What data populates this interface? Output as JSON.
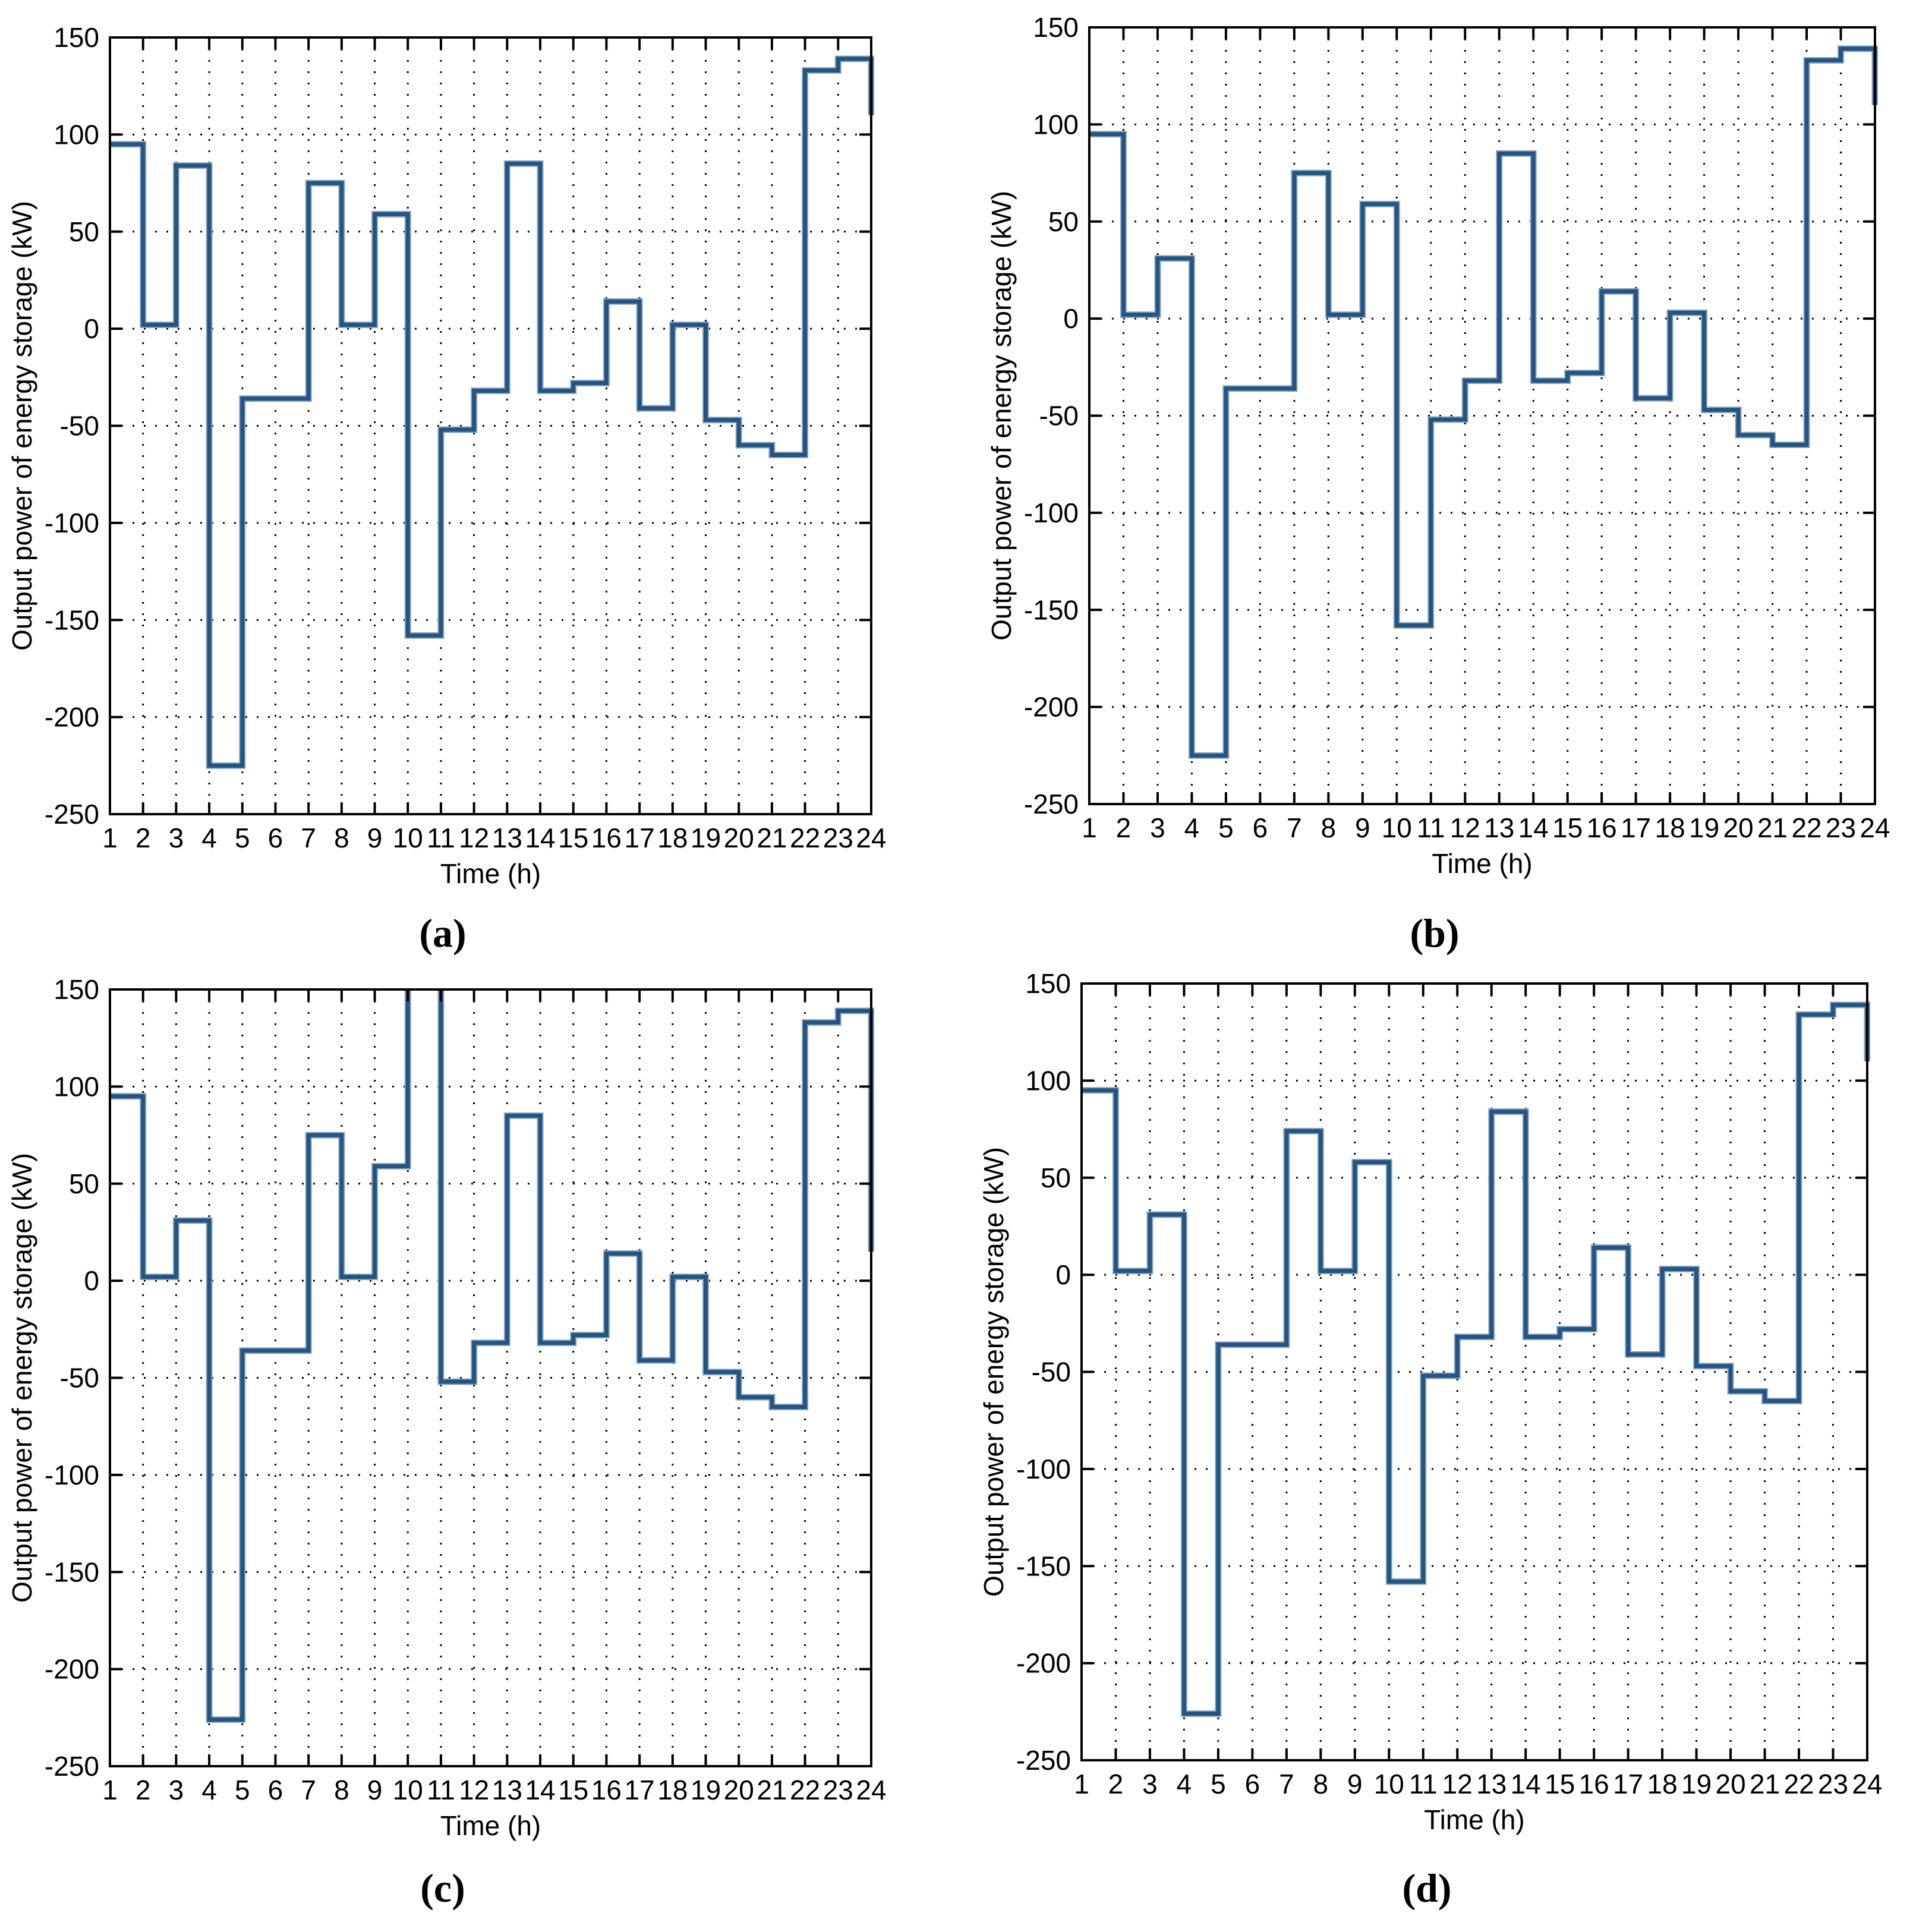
{
  "figure": {
    "background_color": "#ffffff",
    "axis_color": "#000000",
    "line_color": "#24547f",
    "line_halo_color": "#8aa6c5",
    "grid_style": "dotted"
  },
  "chart_data": [
    {
      "id": "a",
      "type": "line",
      "subtype": "stairs",
      "caption": "(a)",
      "xlabel": "Time (h)",
      "ylabel": "Output power of energy storage (kW)",
      "xlim": [
        1,
        24
      ],
      "ylim": [
        -250,
        150
      ],
      "x_ticks": [
        1,
        2,
        3,
        4,
        5,
        6,
        7,
        8,
        9,
        10,
        11,
        12,
        13,
        14,
        15,
        16,
        17,
        18,
        19,
        20,
        21,
        22,
        23,
        24
      ],
      "y_ticks": [
        150,
        100,
        50,
        0,
        -50,
        -100,
        -150,
        -200,
        -250
      ],
      "grid": "dotted",
      "legend": "none",
      "x": [
        1,
        2,
        3,
        4,
        5,
        6,
        7,
        8,
        9,
        10,
        11,
        12,
        13,
        14,
        15,
        16,
        17,
        18,
        19,
        20,
        21,
        22,
        23,
        24
      ],
      "values": [
        95,
        2,
        84,
        -225,
        -36,
        -36,
        75,
        2,
        59,
        -158,
        -52,
        -32,
        85,
        -32,
        -28,
        14,
        -41,
        2,
        -47,
        -60,
        -65,
        133,
        139,
        110
      ],
      "clipped_above_ymax": false,
      "layout": {
        "quadrant_left": 0,
        "quadrant_top": 0,
        "ax_left": 185,
        "ax_top": 63,
        "ax_width": 1281,
        "ax_height": 1307,
        "caption_center_x": 745,
        "caption_top": 1524
      }
    },
    {
      "id": "b",
      "type": "line",
      "subtype": "stairs",
      "caption": "(b)",
      "xlabel": "Time (h)",
      "ylabel": "Output power of energy storage (kW)",
      "xlim": [
        1,
        24
      ],
      "ylim": [
        -250,
        150
      ],
      "x_ticks": [
        1,
        2,
        3,
        4,
        5,
        6,
        7,
        8,
        9,
        10,
        11,
        12,
        13,
        14,
        15,
        16,
        17,
        18,
        19,
        20,
        21,
        22,
        23,
        24
      ],
      "y_ticks": [
        150,
        100,
        50,
        0,
        -50,
        -100,
        -150,
        -200,
        -250
      ],
      "grid": "dotted",
      "legend": "none",
      "x": [
        1,
        2,
        3,
        4,
        5,
        6,
        7,
        8,
        9,
        10,
        11,
        12,
        13,
        14,
        15,
        16,
        17,
        18,
        19,
        20,
        21,
        22,
        23,
        24
      ],
      "values": [
        95,
        2,
        31,
        -225,
        -36,
        -36,
        75,
        2,
        59,
        -158,
        -52,
        -32,
        85,
        -32,
        -28,
        14,
        -41,
        3,
        -47,
        -60,
        -65,
        133,
        139,
        110
      ],
      "clipped_above_ymax": false,
      "layout": {
        "quadrant_left": 1625,
        "quadrant_top": 0,
        "ax_left": 208,
        "ax_top": 46,
        "ax_width": 1322,
        "ax_height": 1307,
        "caption_center_x": 789,
        "caption_top": 1524
      }
    },
    {
      "id": "c",
      "type": "line",
      "subtype": "stairs",
      "caption": "(c)",
      "xlabel": "Time (h)",
      "ylabel": "Output power of energy storage (kW)",
      "xlim": [
        1,
        24
      ],
      "ylim": [
        -250,
        150
      ],
      "x_ticks": [
        1,
        2,
        3,
        4,
        5,
        6,
        7,
        8,
        9,
        10,
        11,
        12,
        13,
        14,
        15,
        16,
        17,
        18,
        19,
        20,
        21,
        22,
        23,
        24
      ],
      "y_ticks": [
        150,
        100,
        50,
        0,
        -50,
        -100,
        -150,
        -200,
        -250
      ],
      "grid": "dotted",
      "legend": "none",
      "x": [
        1,
        2,
        3,
        4,
        5,
        6,
        7,
        8,
        9,
        10,
        11,
        12,
        13,
        14,
        15,
        16,
        17,
        18,
        19,
        20,
        21,
        22,
        23,
        24
      ],
      "values": [
        95,
        2,
        31,
        -226,
        -36,
        -36,
        75,
        2,
        59,
        165,
        -52,
        -32,
        85,
        -32,
        -28,
        14,
        -41,
        2,
        -47,
        -60,
        -65,
        133,
        139,
        15
      ],
      "clipped_above_ymax": true,
      "note": "hour-10 step exceeds the 150 kW axis maximum; line is clipped at the top border",
      "layout": {
        "quadrant_left": 0,
        "quadrant_top": 1625,
        "ax_left": 185,
        "ax_top": 40,
        "ax_width": 1281,
        "ax_height": 1307,
        "caption_center_x": 745,
        "caption_top": 1506
      }
    },
    {
      "id": "d",
      "type": "line",
      "subtype": "stairs",
      "caption": "(d)",
      "xlabel": "Time (h)",
      "ylabel": "Output power of energy storage (kW)",
      "xlim": [
        1,
        24
      ],
      "ylim": [
        -250,
        150
      ],
      "x_ticks": [
        1,
        2,
        3,
        4,
        5,
        6,
        7,
        8,
        9,
        10,
        11,
        12,
        13,
        14,
        15,
        16,
        17,
        18,
        19,
        20,
        21,
        22,
        23,
        24
      ],
      "y_ticks": [
        150,
        100,
        50,
        0,
        -50,
        -100,
        -150,
        -200,
        -250
      ],
      "grid": "dotted",
      "legend": "none",
      "x": [
        1,
        2,
        3,
        4,
        5,
        6,
        7,
        8,
        9,
        10,
        11,
        12,
        13,
        14,
        15,
        16,
        17,
        18,
        19,
        20,
        21,
        22,
        23,
        24
      ],
      "values": [
        95,
        2,
        31,
        -226,
        -36,
        -36,
        74,
        2,
        58,
        -158,
        -52,
        -32,
        84,
        -32,
        -28,
        14,
        -41,
        3,
        -47,
        -60,
        -65,
        134,
        139,
        110
      ],
      "clipped_above_ymax": false,
      "layout": {
        "quadrant_left": 1625,
        "quadrant_top": 1625,
        "ax_left": 195,
        "ax_top": 30,
        "ax_width": 1322,
        "ax_height": 1307,
        "caption_center_x": 776,
        "caption_top": 1506
      }
    }
  ]
}
